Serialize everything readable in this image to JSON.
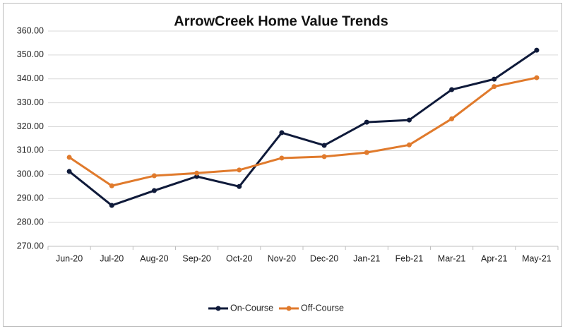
{
  "chart_data": {
    "type": "line",
    "title": "ArrowCreek Home Value Trends",
    "categories": [
      "Jun-20",
      "Jul-20",
      "Aug-20",
      "Sep-20",
      "Oct-20",
      "Nov-20",
      "Dec-20",
      "Jan-21",
      "Feb-21",
      "Mar-21",
      "Apr-21",
      "May-21"
    ],
    "series": [
      {
        "name": "On-Course",
        "color": "#0f1a3a",
        "values": [
          301.3,
          287.1,
          293.3,
          299.2,
          295.0,
          317.5,
          312.2,
          321.9,
          322.8,
          335.5,
          339.9,
          352.0
        ]
      },
      {
        "name": "Off-Course",
        "color": "#e07a2c",
        "values": [
          307.2,
          295.3,
          299.5,
          300.6,
          301.9,
          306.9,
          307.5,
          309.2,
          312.4,
          323.3,
          336.8,
          340.5
        ]
      }
    ],
    "ylim": [
      270,
      360
    ],
    "yticks": [
      {
        "value": 270,
        "label": "270.00"
      },
      {
        "value": 280,
        "label": "280.00"
      },
      {
        "value": 290,
        "label": "290.00"
      },
      {
        "value": 300,
        "label": "300.00"
      },
      {
        "value": 310,
        "label": "310.00"
      },
      {
        "value": 320,
        "label": "320.00"
      },
      {
        "value": 330,
        "label": "330.00"
      },
      {
        "value": 340,
        "label": "340.00"
      },
      {
        "value": 350,
        "label": "350.00"
      },
      {
        "value": 360,
        "label": "360.00"
      }
    ],
    "grid": true,
    "legend": "bottom"
  }
}
